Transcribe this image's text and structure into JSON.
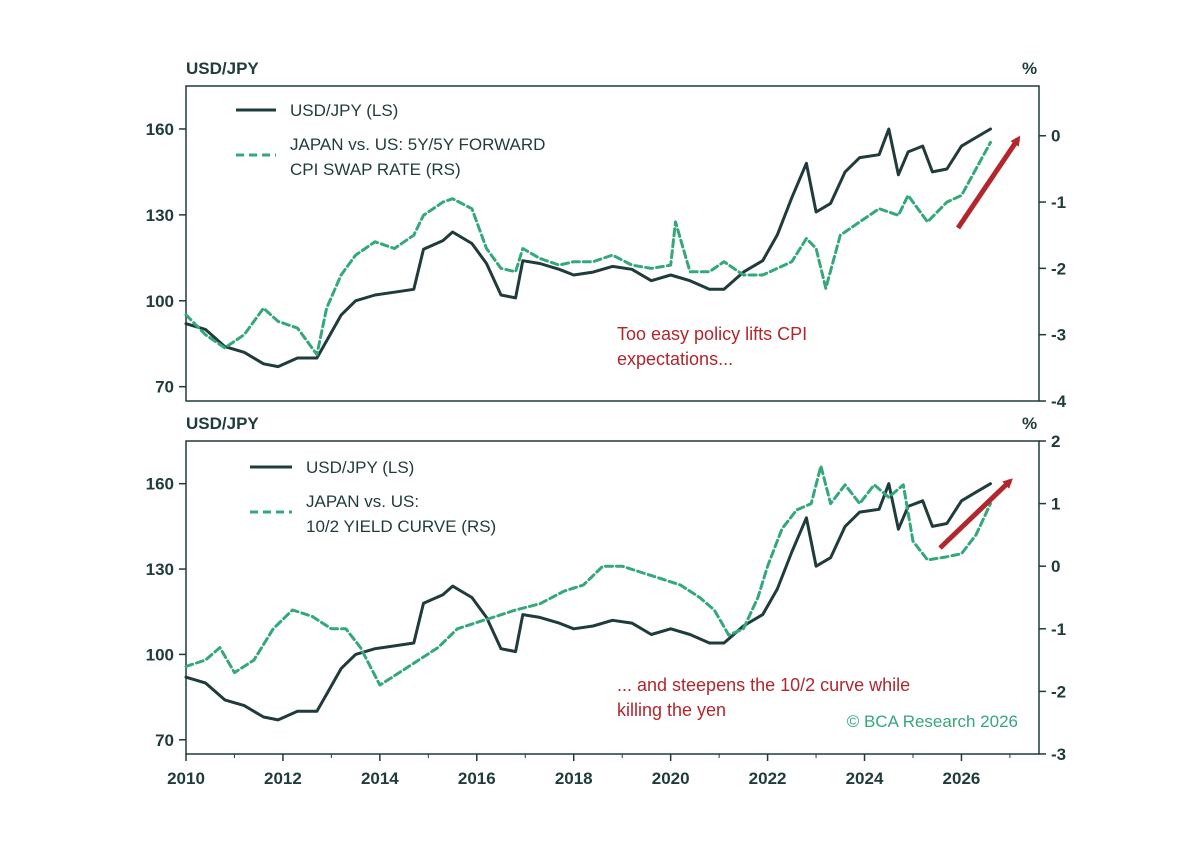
{
  "chart_data": [
    {
      "type": "line",
      "ylabel_left": "USD/JPY",
      "ylabel_right": "%",
      "left_ticks": [
        "160",
        "130",
        "100",
        "70"
      ],
      "right_ticks": [
        "0",
        "-1",
        "-2",
        "-3",
        "-4"
      ],
      "ylim_left": [
        65,
        175
      ],
      "ylim_right": [
        -4.0,
        0.75
      ],
      "xlim": [
        2010,
        2027.6
      ],
      "legend_position": "top-left",
      "annotation": [
        "Too easy policy lifts CPI",
        "expectations..."
      ],
      "colors": {
        "usdjpy": "#1f3b3b",
        "secondary": "#34a87a",
        "arrow": "#b3262c"
      },
      "series": [
        {
          "name": "USD/JPY (LS)",
          "axis": "left",
          "style": "solid",
          "x": [
            2010.0,
            2010.4,
            2010.8,
            2011.2,
            2011.6,
            2011.9,
            2012.3,
            2012.7,
            2012.9,
            2013.2,
            2013.5,
            2013.9,
            2014.3,
            2014.7,
            2014.9,
            2015.3,
            2015.5,
            2015.9,
            2016.2,
            2016.5,
            2016.8,
            2016.95,
            2017.3,
            2017.7,
            2018.0,
            2018.4,
            2018.8,
            2019.2,
            2019.6,
            2020.0,
            2020.4,
            2020.8,
            2021.1,
            2021.5,
            2021.9,
            2022.2,
            2022.5,
            2022.8,
            2023.0,
            2023.3,
            2023.6,
            2023.9,
            2024.3,
            2024.5,
            2024.7,
            2024.9,
            2025.2,
            2025.4,
            2025.7,
            2026.0,
            2026.3,
            2026.6
          ],
          "y": [
            92,
            90,
            84,
            82,
            78,
            77,
            80,
            80,
            86,
            95,
            100,
            102,
            103,
            104,
            118,
            121,
            124,
            120,
            113,
            102,
            101,
            114,
            113,
            111,
            109,
            110,
            112,
            111,
            107,
            109,
            107,
            104,
            104,
            110,
            114,
            123,
            136,
            148,
            131,
            134,
            145,
            150,
            151,
            160,
            144,
            152,
            154,
            145,
            146,
            154,
            157,
            160
          ]
        },
        {
          "name": "JAPAN vs. US: 5Y/5Y FORWARD CPI SWAP RATE (RS)",
          "name_lines": [
            "JAPAN vs. US: 5Y/5Y FORWARD",
            "CPI SWAP RATE (RS)"
          ],
          "axis": "right",
          "style": "dashed",
          "x": [
            2010.0,
            2010.4,
            2010.8,
            2011.2,
            2011.6,
            2011.9,
            2012.3,
            2012.7,
            2012.9,
            2013.2,
            2013.5,
            2013.9,
            2014.3,
            2014.7,
            2014.9,
            2015.3,
            2015.5,
            2015.9,
            2016.2,
            2016.5,
            2016.8,
            2016.95,
            2017.3,
            2017.7,
            2018.0,
            2018.4,
            2018.8,
            2019.2,
            2019.6,
            2020.0,
            2020.1,
            2020.4,
            2020.8,
            2021.1,
            2021.5,
            2021.9,
            2022.2,
            2022.5,
            2022.8,
            2023.0,
            2023.2,
            2023.5,
            2023.9,
            2024.3,
            2024.7,
            2024.9,
            2025.3,
            2025.7,
            2026.0,
            2026.3,
            2026.6
          ],
          "y": [
            -2.7,
            -3.0,
            -3.2,
            -3.0,
            -2.6,
            -2.8,
            -2.9,
            -3.3,
            -2.6,
            -2.1,
            -1.8,
            -1.6,
            -1.7,
            -1.5,
            -1.2,
            -1.0,
            -0.95,
            -1.1,
            -1.7,
            -2.0,
            -2.05,
            -1.7,
            -1.85,
            -1.95,
            -1.9,
            -1.9,
            -1.8,
            -1.95,
            -2.0,
            -1.95,
            -1.3,
            -2.05,
            -2.05,
            -1.9,
            -2.1,
            -2.1,
            -2.0,
            -1.9,
            -1.55,
            -1.7,
            -2.3,
            -1.5,
            -1.3,
            -1.1,
            -1.2,
            -0.9,
            -1.3,
            -1.0,
            -0.9,
            -0.5,
            -0.1
          ]
        }
      ]
    },
    {
      "type": "line",
      "ylabel_left": "USD/JPY",
      "ylabel_right": "%",
      "left_ticks": [
        "160",
        "130",
        "100",
        "70"
      ],
      "right_ticks": [
        "2",
        "1",
        "0",
        "-1",
        "-2",
        "-3"
      ],
      "ylim_left": [
        65,
        175
      ],
      "ylim_right": [
        -3.0,
        2.0
      ],
      "xlim": [
        2010,
        2027.6
      ],
      "x_ticks": [
        "2010",
        "2012",
        "2014",
        "2016",
        "2018",
        "2020",
        "2022",
        "2024",
        "2026"
      ],
      "legend_position": "top-left",
      "annotation": [
        "... and steepens the 10/2 curve while",
        "killing the yen"
      ],
      "credit": "© BCA Research 2026",
      "colors": {
        "usdjpy": "#1f3b3b",
        "secondary": "#34a87a",
        "arrow": "#b3262c"
      },
      "series": [
        {
          "name": "USD/JPY (LS)",
          "axis": "left",
          "style": "solid",
          "x": [
            2010.0,
            2010.4,
            2010.8,
            2011.2,
            2011.6,
            2011.9,
            2012.3,
            2012.7,
            2012.9,
            2013.2,
            2013.5,
            2013.9,
            2014.3,
            2014.7,
            2014.9,
            2015.3,
            2015.5,
            2015.9,
            2016.2,
            2016.5,
            2016.8,
            2016.95,
            2017.3,
            2017.7,
            2018.0,
            2018.4,
            2018.8,
            2019.2,
            2019.6,
            2020.0,
            2020.4,
            2020.8,
            2021.1,
            2021.5,
            2021.9,
            2022.2,
            2022.5,
            2022.8,
            2023.0,
            2023.3,
            2023.6,
            2023.9,
            2024.3,
            2024.5,
            2024.7,
            2024.9,
            2025.2,
            2025.4,
            2025.7,
            2026.0,
            2026.3,
            2026.6
          ],
          "y": [
            92,
            90,
            84,
            82,
            78,
            77,
            80,
            80,
            86,
            95,
            100,
            102,
            103,
            104,
            118,
            121,
            124,
            120,
            113,
            102,
            101,
            114,
            113,
            111,
            109,
            110,
            112,
            111,
            107,
            109,
            107,
            104,
            104,
            110,
            114,
            123,
            136,
            148,
            131,
            134,
            145,
            150,
            151,
            160,
            144,
            152,
            154,
            145,
            146,
            154,
            157,
            160
          ]
        },
        {
          "name": "JAPAN vs. US: 10/2 YIELD CURVE (RS)",
          "name_lines": [
            "JAPAN vs. US:",
            "10/2 YIELD CURVE (RS)"
          ],
          "axis": "right",
          "style": "dashed",
          "x": [
            2010.0,
            2010.4,
            2010.7,
            2011.0,
            2011.4,
            2011.8,
            2012.2,
            2012.6,
            2013.0,
            2013.3,
            2013.6,
            2014.0,
            2014.4,
            2014.8,
            2015.2,
            2015.6,
            2016.0,
            2016.4,
            2016.8,
            2017.3,
            2017.8,
            2018.2,
            2018.6,
            2019.0,
            2019.4,
            2019.8,
            2020.2,
            2020.6,
            2020.9,
            2021.2,
            2021.5,
            2021.8,
            2022.0,
            2022.3,
            2022.6,
            2022.9,
            2023.1,
            2023.3,
            2023.6,
            2023.9,
            2024.2,
            2024.5,
            2024.8,
            2025.0,
            2025.3,
            2025.7,
            2026.0,
            2026.3,
            2026.6
          ],
          "y": [
            -1.6,
            -1.5,
            -1.3,
            -1.7,
            -1.5,
            -1.0,
            -0.7,
            -0.8,
            -1.0,
            -1.0,
            -1.3,
            -1.9,
            -1.7,
            -1.5,
            -1.3,
            -1.0,
            -0.9,
            -0.8,
            -0.7,
            -0.6,
            -0.4,
            -0.3,
            0.0,
            0.0,
            -0.1,
            -0.2,
            -0.3,
            -0.5,
            -0.7,
            -1.1,
            -1.0,
            -0.5,
            0.0,
            0.6,
            0.9,
            1.0,
            1.6,
            1.0,
            1.3,
            1.0,
            1.3,
            1.1,
            1.3,
            0.4,
            0.1,
            0.15,
            0.2,
            0.5,
            1.0
          ]
        }
      ]
    }
  ]
}
